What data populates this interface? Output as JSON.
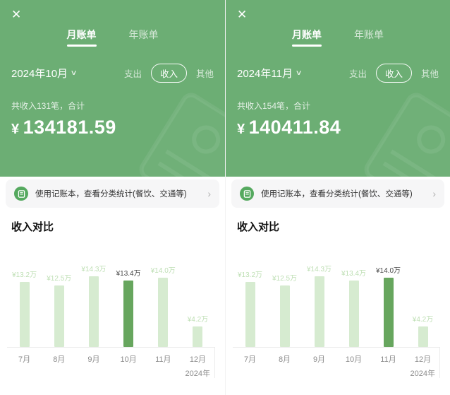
{
  "colors": {
    "header_green": "#6cae74",
    "icon_green": "#55a95f",
    "bar_light": "#d6ebd0",
    "bar_dark": "#67a65e",
    "label_light": "#bedfb4",
    "label_dark": "#4b4b4b",
    "banner_bg": "#f6f6f7",
    "axis": "#ebebeb",
    "muted": "#8b8b8b"
  },
  "icons": {
    "close": "✕",
    "chevron_down": "∨",
    "chevron_right": "›"
  },
  "panels": [
    {
      "tabs": {
        "monthly": "月账单",
        "yearly": "年账单"
      },
      "period": "2024年10月",
      "filters": {
        "expense": "支出",
        "income": "收入",
        "other": "其他"
      },
      "summary": "共收入131笔，合计",
      "currency": "¥",
      "total": "134181.59",
      "banner": {
        "text": "使用记账本，查看分类统计(餐饮、交通等)"
      },
      "section_title": "收入对比"
    },
    {
      "tabs": {
        "monthly": "月账单",
        "yearly": "年账单"
      },
      "period": "2024年11月",
      "filters": {
        "expense": "支出",
        "income": "收入",
        "other": "其他"
      },
      "summary": "共收入154笔，合计",
      "currency": "¥",
      "total": "140411.84",
      "banner": {
        "text": "使用记账本，查看分类统计(餐饮、交通等)"
      },
      "section_title": "收入对比"
    }
  ],
  "chart_data": [
    {
      "type": "bar",
      "title": "收入对比",
      "categories": [
        "7月",
        "8月",
        "9月",
        "10月",
        "11月",
        "12月"
      ],
      "values": [
        13.2,
        12.5,
        14.3,
        13.4,
        14.0,
        4.2
      ],
      "labels": [
        "¥13.2万",
        "¥12.5万",
        "¥14.3万",
        "¥13.4万",
        "¥14.0万",
        "¥4.2万"
      ],
      "unit": "万元",
      "highlight_index": 3,
      "year_label": "2024年",
      "ylim": [
        0,
        14.3
      ],
      "grid": false,
      "legend": false
    },
    {
      "type": "bar",
      "title": "收入对比",
      "categories": [
        "7月",
        "8月",
        "9月",
        "10月",
        "11月",
        "12月"
      ],
      "values": [
        13.2,
        12.5,
        14.3,
        13.4,
        14.0,
        4.2
      ],
      "labels": [
        "¥13.2万",
        "¥12.5万",
        "¥14.3万",
        "¥13.4万",
        "¥14.0万",
        "¥4.2万"
      ],
      "unit": "万元",
      "highlight_index": 4,
      "year_label": "2024年",
      "ylim": [
        0,
        14.3
      ],
      "grid": false,
      "legend": false
    }
  ]
}
